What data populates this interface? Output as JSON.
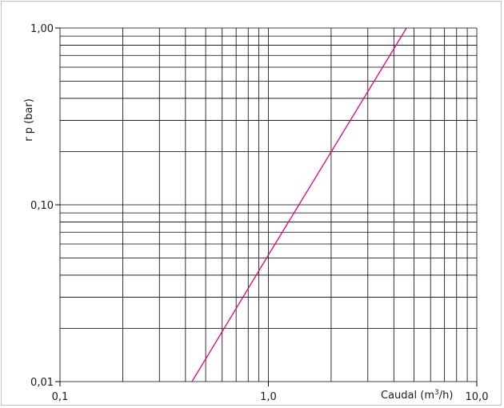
{
  "chart_data": {
    "type": "line",
    "title": "",
    "xlabel": "Caudal (m³/h)",
    "xlabel_main": "Caudal (m",
    "xlabel_sup": "3",
    "xlabel_tail": "/h)",
    "ylabel": "r  p (bar)",
    "xscale": "log",
    "yscale": "log",
    "xlim": [
      0.1,
      10.0
    ],
    "ylim": [
      0.01,
      1.0
    ],
    "x_ticks": [
      {
        "value": 0.1,
        "label": "0,1"
      },
      {
        "value": 1.0,
        "label": "1,0"
      },
      {
        "value": 10.0,
        "label": "10,0"
      }
    ],
    "y_ticks": [
      {
        "value": 0.01,
        "label": "0,01"
      },
      {
        "value": 0.1,
        "label": "0,10"
      },
      {
        "value": 1.0,
        "label": "1,00"
      }
    ],
    "grid": true,
    "line_color": "#e6007e",
    "grid_color": "#000000",
    "series": [
      {
        "x": [
          0.43,
          1.0,
          4.6
        ],
        "y": [
          0.01,
          0.052,
          1.0
        ]
      }
    ]
  }
}
